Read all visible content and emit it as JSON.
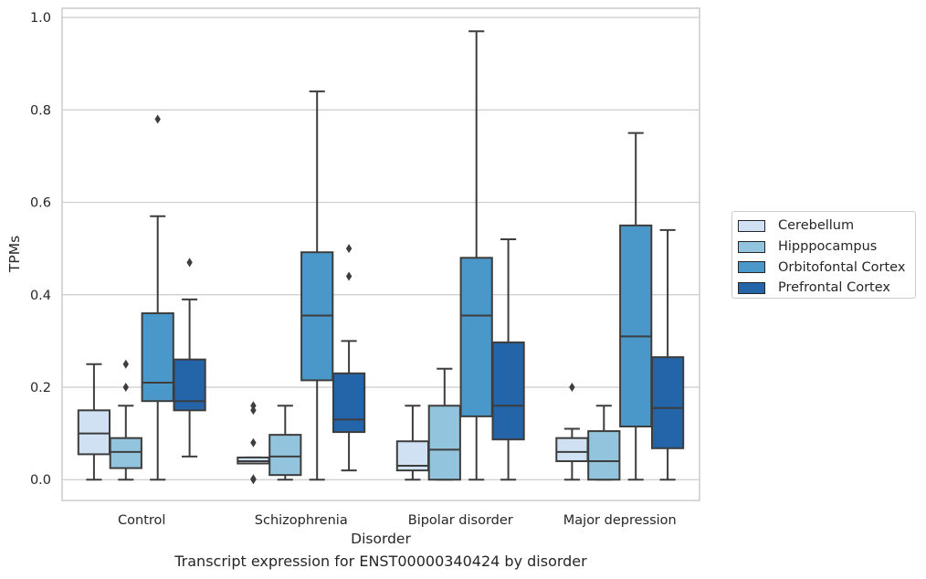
{
  "chart_data": {
    "type": "box",
    "caption": "Transcript expression for ENST00000340424 by disorder",
    "xlabel": "Disorder",
    "ylabel": "TPMs",
    "ylim": [
      -0.045,
      1.02
    ],
    "yticks": [
      0.0,
      0.2,
      0.4,
      0.6,
      0.8,
      1.0
    ],
    "ytick_labels": [
      "0.0",
      "0.2",
      "0.4",
      "0.6",
      "0.8",
      "1.0"
    ],
    "grid": "horizontal",
    "legend_position": "right",
    "categories": [
      "Control",
      "Schizophrenia",
      "Bipolar disorder",
      "Major depression"
    ],
    "series": [
      {
        "name": "Cerebellum",
        "color": "#cfe1f2",
        "boxes": [
          {
            "whislo": 0.0,
            "q1": 0.055,
            "med": 0.1,
            "q3": 0.15,
            "whishi": 0.25,
            "fliers": []
          },
          {
            "whislo": 0.035,
            "q1": 0.035,
            "med": 0.04,
            "q3": 0.048,
            "whishi": 0.048,
            "fliers": [
              0.0,
              0.002,
              0.08,
              0.15,
              0.16
            ]
          },
          {
            "whislo": 0.0,
            "q1": 0.02,
            "med": 0.03,
            "q3": 0.083,
            "whishi": 0.16,
            "fliers": []
          },
          {
            "whislo": 0.0,
            "q1": 0.04,
            "med": 0.06,
            "q3": 0.09,
            "whishi": 0.11,
            "fliers": [
              0.2
            ]
          }
        ]
      },
      {
        "name": "Hipppocampus",
        "color": "#93c4de",
        "boxes": [
          {
            "whislo": 0.0,
            "q1": 0.025,
            "med": 0.06,
            "q3": 0.09,
            "whishi": 0.16,
            "fliers": [
              0.2,
              0.25
            ]
          },
          {
            "whislo": 0.0,
            "q1": 0.01,
            "med": 0.05,
            "q3": 0.097,
            "whishi": 0.16,
            "fliers": []
          },
          {
            "whislo": 0.0,
            "q1": 0.0,
            "med": 0.065,
            "q3": 0.16,
            "whishi": 0.24,
            "fliers": []
          },
          {
            "whislo": 0.0,
            "q1": 0.0,
            "med": 0.04,
            "q3": 0.105,
            "whishi": 0.16,
            "fliers": []
          }
        ]
      },
      {
        "name": "Orbitofontal Cortex",
        "color": "#4a98c9",
        "boxes": [
          {
            "whislo": 0.0,
            "q1": 0.17,
            "med": 0.21,
            "q3": 0.36,
            "whishi": 0.57,
            "fliers": [
              0.78
            ]
          },
          {
            "whislo": 0.0,
            "q1": 0.215,
            "med": 0.355,
            "q3": 0.492,
            "whishi": 0.84,
            "fliers": []
          },
          {
            "whislo": 0.0,
            "q1": 0.137,
            "med": 0.355,
            "q3": 0.48,
            "whishi": 0.97,
            "fliers": []
          },
          {
            "whislo": 0.0,
            "q1": 0.115,
            "med": 0.31,
            "q3": 0.55,
            "whishi": 0.75,
            "fliers": []
          }
        ]
      },
      {
        "name": "Prefrontal Cortex",
        "color": "#2464a8",
        "boxes": [
          {
            "whislo": 0.05,
            "q1": 0.15,
            "med": 0.17,
            "q3": 0.26,
            "whishi": 0.39,
            "fliers": [
              0.47
            ]
          },
          {
            "whislo": 0.02,
            "q1": 0.103,
            "med": 0.13,
            "q3": 0.23,
            "whishi": 0.3,
            "fliers": [
              0.44,
              0.5
            ]
          },
          {
            "whislo": 0.0,
            "q1": 0.087,
            "med": 0.16,
            "q3": 0.297,
            "whishi": 0.52,
            "fliers": []
          },
          {
            "whislo": 0.0,
            "q1": 0.068,
            "med": 0.155,
            "q3": 0.265,
            "whishi": 0.54,
            "fliers": []
          }
        ]
      }
    ]
  }
}
